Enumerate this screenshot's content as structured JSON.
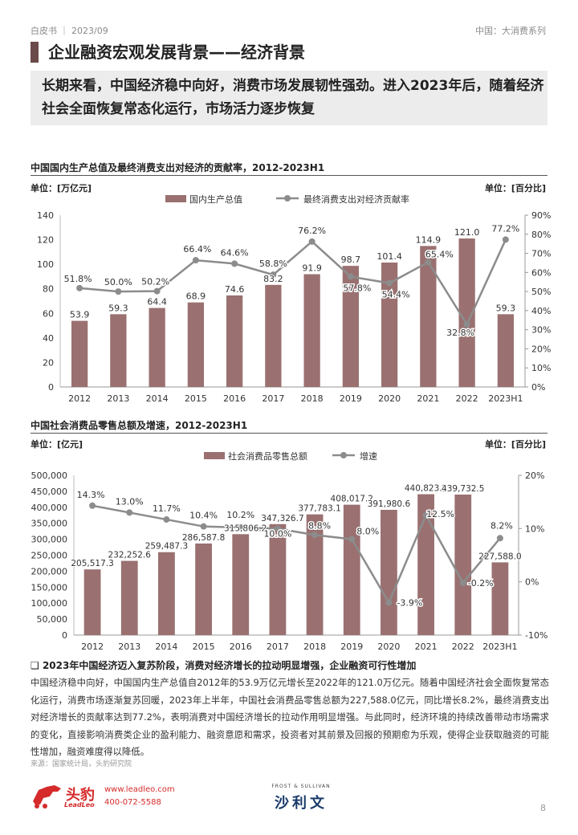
{
  "header": {
    "left": "白皮书 ｜ 2023/09",
    "right": "中国：大消费系列"
  },
  "title": "企业融资宏观发展背景——经济背景",
  "summary": "长期来看，中国经济稳中向好，消费市场发展韧性强劲。进入2023年后，随着经济社会全面恢复常态化运行，市场活力逐步恢复",
  "chart1": {
    "heading": "中国国内生产总值及最终消费支出对经济的贡献率，2012-2023H1",
    "unit_left": "单位：[万亿元]",
    "unit_right": "单位：[百分比]",
    "legend_bar": "国内生产总值",
    "legend_line": "最终消费支出对经济贡献率"
  },
  "chart2": {
    "heading": "中国社会消费品零售总额及增速，2012-2023H1",
    "unit_left": "单位：[亿元]",
    "unit_right": "单位：[百分比]",
    "legend_bar": "社会消费品零售总额",
    "legend_line": "增速"
  },
  "chart_data": [
    {
      "type": "bar",
      "categories": [
        "2012",
        "2013",
        "2014",
        "2015",
        "2016",
        "2017",
        "2018",
        "2019",
        "2020",
        "2021",
        "2022",
        "2023H1"
      ],
      "series": [
        {
          "name": "国内生产总值",
          "type": "bar",
          "axis": "left",
          "values": [
            53.9,
            59.3,
            64.4,
            68.9,
            74.6,
            83.2,
            91.9,
            98.7,
            101.4,
            114.9,
            121.0,
            59.3
          ],
          "labels": [
            "53.9",
            "59.3",
            "64.4",
            "68.9",
            "74.6",
            "83.2",
            "91.9",
            "98.7",
            "101.4",
            "114.9",
            "121.0",
            "59.3"
          ]
        },
        {
          "name": "最终消费支出对经济贡献率",
          "type": "line",
          "axis": "right",
          "values": [
            51.8,
            50.0,
            50.2,
            66.4,
            64.6,
            58.8,
            76.2,
            57.8,
            54.4,
            65.4,
            32.8,
            77.2
          ],
          "labels": [
            "51.8%",
            "50.0%",
            "50.2%",
            "66.4%",
            "64.6%",
            "58.8%",
            "76.2%",
            "57.8%",
            "54.4%",
            "65.4%",
            "32.8%",
            "77.2%"
          ]
        }
      ],
      "ylim_left": [
        0,
        140
      ],
      "yticks_left": [
        "0",
        "20",
        "40",
        "60",
        "80",
        "100",
        "120",
        "140"
      ],
      "ylim_right": [
        0,
        90
      ],
      "yticks_right": [
        "0%",
        "10%",
        "20%",
        "30%",
        "40%",
        "50%",
        "60%",
        "70%",
        "80%",
        "90%"
      ],
      "colors": {
        "bar": "#9a7070",
        "line": "#8c8c8c"
      },
      "legend": "top"
    },
    {
      "type": "bar",
      "categories": [
        "2012",
        "2013",
        "2014",
        "2015",
        "2016",
        "2017",
        "2018",
        "2019",
        "2020",
        "2021",
        "2022",
        "2023H1"
      ],
      "series": [
        {
          "name": "社会消费品零售总额",
          "type": "bar",
          "axis": "left",
          "values": [
            205517.3,
            232252.6,
            259487.3,
            286587.8,
            315806.2,
            347326.7,
            377783.1,
            408017.2,
            391980.6,
            440823.2,
            439732.5,
            227588.0
          ],
          "labels": [
            "205,517.3",
            "232,252.6",
            "259,487.3",
            "286,587.8",
            "315,806.2",
            "347,326.7",
            "377,783.1",
            "408,017.2",
            "391,980.6",
            "440,823.2",
            "439,732.5",
            "227,588.0"
          ]
        },
        {
          "name": "增速",
          "type": "line",
          "axis": "right",
          "values": [
            14.3,
            13.0,
            11.7,
            10.4,
            10.2,
            10.0,
            8.8,
            8.0,
            -3.9,
            12.5,
            -0.2,
            8.2
          ],
          "labels": [
            "14.3%",
            "13.0%",
            "11.7%",
            "10.4%",
            "10.2%",
            "10.0%",
            "8.8%",
            "8.0%",
            "-3.9%",
            "12.5%",
            "-0.2%",
            "8.2%"
          ]
        }
      ],
      "ylim_left": [
        0,
        500000
      ],
      "yticks_left": [
        "0",
        "50,000",
        "100,000",
        "150,000",
        "200,000",
        "250,000",
        "300,000",
        "350,000",
        "400,000",
        "450,000",
        "500,000"
      ],
      "ylim_right": [
        -10,
        20
      ],
      "yticks_right": [
        "-10%",
        "0%",
        "10%",
        "20%"
      ],
      "colors": {
        "bar": "#9a7070",
        "line": "#8c8c8c"
      },
      "legend": "top"
    }
  ],
  "bullet": {
    "marker": "❑",
    "title": "2023年中国经济迈入复苏阶段，消费对经济增长的拉动明显增强，企业融资可行性增加"
  },
  "body": "中国经济稳中向好，中国国内生产总值自2012年的53.9万亿元增长至2022年的121.0万亿元。随着中国经济社会全面恢复常态化运行，消费市场逐渐复苏回暖，2023年上半年，中国社会消费品零售总额为227,588.0亿元，同比增长8.2%，最终消费支出对经济增长的贡献率达到77.2%，表明消费对中国经济增长的拉动作用明显增强。与此同时，经济环境的持续改善带动市场需求的变化，直接影响消费类企业的盈利能力、融资意愿和需求，投资者对其前景及回报的预期愈为乐观，使得企业获取融资的可能性增加，融资难度得以降低。",
  "source": "来源：国家统计局，头豹研究院",
  "footer": {
    "brand": "头豹",
    "brand_sub": "LeadLeo",
    "site": "www.leadleo.com",
    "phone": "400-072-5588",
    "partner_top": "FROST & SULLIVAN",
    "partner_main": "沙利文",
    "page": "8"
  }
}
